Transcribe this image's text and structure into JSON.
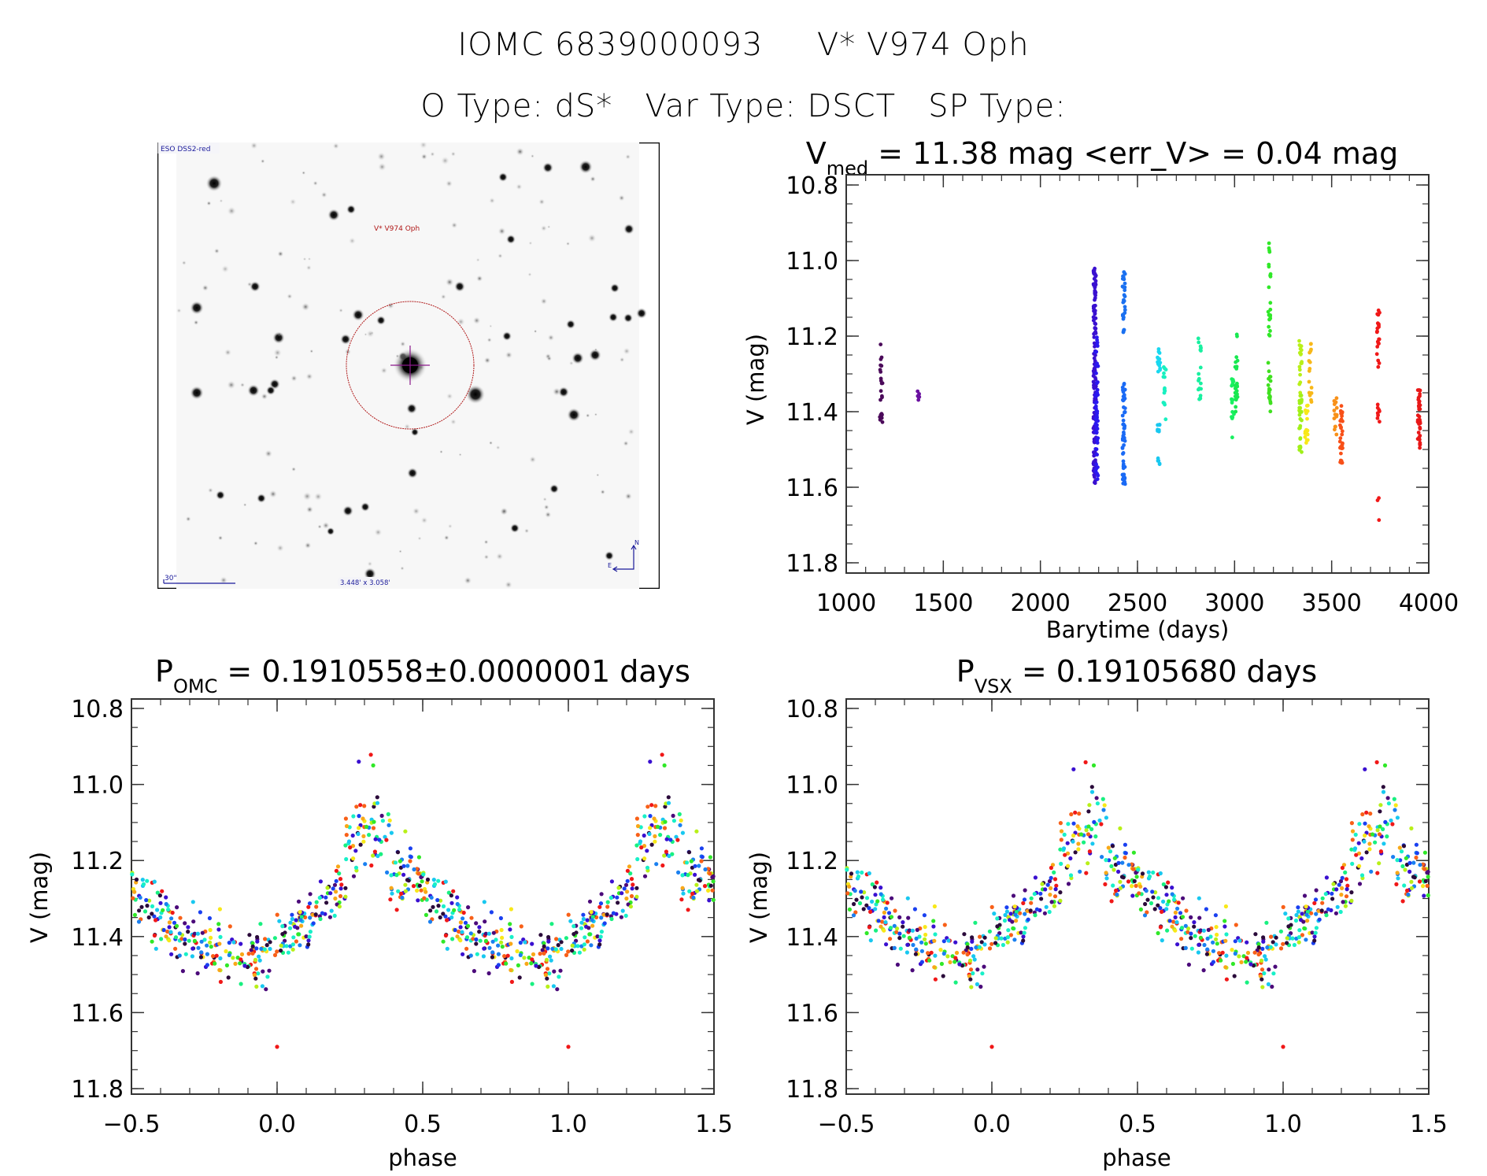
{
  "header": {
    "line1_id": "IOMC 6839000093",
    "line1_name": "V* V974 Oph",
    "line2_otype": "O Type: dS*",
    "line2_vartype": "Var Type: DSCT",
    "line2_sptype": "SP Type:"
  },
  "sky_image": {
    "survey_label": "ESO DSS2-red",
    "target_label": "V* V974 Oph",
    "scale_label": "30\"",
    "fov_label": "3.448' x 3.058'",
    "north_label": "N",
    "east_label": "E",
    "colors": {
      "overlay_blue": "#1a1a9a",
      "target_red": "#b01818",
      "cross": "#8a1a8a"
    }
  },
  "chart_data": [
    {
      "id": "lightcurve",
      "type": "scatter",
      "title_main": "V",
      "title_sub": "med",
      "title_rest": " = 11.38 mag <err_V> = 0.04 mag",
      "xlabel": "Barytime (days)",
      "ylabel": "V (mag)",
      "xlim": [
        1000,
        4000
      ],
      "ylim": [
        10.8,
        11.8
      ],
      "y_inverted": true,
      "xticks": [
        1000,
        1500,
        2000,
        2500,
        3000,
        3500,
        4000
      ],
      "xtick_labels": [
        "1000",
        "1500",
        "2000",
        "2500",
        "3000",
        "3500",
        "4000"
      ],
      "yticks": [
        10.8,
        11.0,
        11.2,
        11.4,
        11.6,
        11.8
      ],
      "ytick_labels": [
        "10.8",
        "11.0",
        "11.2",
        "11.4",
        "11.6",
        "11.8"
      ],
      "grid": false,
      "clusters": [
        {
          "t": 1180,
          "mag_min": 11.22,
          "mag_max": 11.43,
          "n": 22,
          "color": "#4b0a5a"
        },
        {
          "t": 1370,
          "mag_min": 11.34,
          "mag_max": 11.37,
          "n": 6,
          "color": "#6a10a0"
        },
        {
          "t": 2280,
          "mag_min": 11.02,
          "mag_max": 11.6,
          "n": 140,
          "color": "#3a10d0"
        },
        {
          "t": 2290,
          "mag_min": 11.2,
          "mag_max": 11.58,
          "n": 60,
          "color": "#2a18f0"
        },
        {
          "t": 2430,
          "mag_min": 11.03,
          "mag_max": 11.2,
          "n": 30,
          "color": "#1a70f0"
        },
        {
          "t": 2430,
          "mag_min": 11.32,
          "mag_max": 11.6,
          "n": 60,
          "color": "#1a6af5"
        },
        {
          "t": 2610,
          "mag_min": 11.22,
          "mag_max": 11.3,
          "n": 14,
          "color": "#18d8f0"
        },
        {
          "t": 2610,
          "mag_min": 11.43,
          "mag_max": 11.55,
          "n": 14,
          "color": "#18c8f0"
        },
        {
          "t": 2640,
          "mag_min": 11.28,
          "mag_max": 11.43,
          "n": 14,
          "color": "#18f0c0"
        },
        {
          "t": 2820,
          "mag_min": 11.18,
          "mag_max": 11.37,
          "n": 18,
          "color": "#18f0a0"
        },
        {
          "t": 2990,
          "mag_min": 11.3,
          "mag_max": 11.47,
          "n": 16,
          "color": "#18f060"
        },
        {
          "t": 3010,
          "mag_min": 11.17,
          "mag_max": 11.4,
          "n": 24,
          "color": "#18e850"
        },
        {
          "t": 3180,
          "mag_min": 10.95,
          "mag_max": 11.2,
          "n": 22,
          "color": "#30e828"
        },
        {
          "t": 3180,
          "mag_min": 11.27,
          "mag_max": 11.4,
          "n": 20,
          "color": "#40e020"
        },
        {
          "t": 3340,
          "mag_min": 11.19,
          "mag_max": 11.4,
          "n": 22,
          "color": "#b8f018"
        },
        {
          "t": 3340,
          "mag_min": 11.35,
          "mag_max": 11.51,
          "n": 26,
          "color": "#a0f018"
        },
        {
          "t": 3370,
          "mag_min": 11.36,
          "mag_max": 11.5,
          "n": 18,
          "color": "#f8e818"
        },
        {
          "t": 3390,
          "mag_min": 11.21,
          "mag_max": 11.38,
          "n": 16,
          "color": "#f8b818"
        },
        {
          "t": 3520,
          "mag_min": 11.36,
          "mag_max": 11.47,
          "n": 14,
          "color": "#f89018"
        },
        {
          "t": 3550,
          "mag_min": 11.38,
          "mag_max": 11.54,
          "n": 30,
          "color": "#f85018"
        },
        {
          "t": 3740,
          "mag_min": 11.13,
          "mag_max": 11.29,
          "n": 24,
          "color": "#f01818"
        },
        {
          "t": 3740,
          "mag_min": 11.38,
          "mag_max": 11.43,
          "n": 8,
          "color": "#f01818"
        },
        {
          "t": 3740,
          "mag_min": 11.54,
          "mag_max": 11.69,
          "n": 3,
          "color": "#f01818"
        },
        {
          "t": 3950,
          "mag_min": 11.34,
          "mag_max": 11.5,
          "n": 40,
          "color": "#e81818"
        }
      ]
    },
    {
      "id": "phase_omc",
      "type": "scatter",
      "title_main": "P",
      "title_sub": "OMC",
      "title_rest": " = 0.1910558±0.0000001 days",
      "xlabel": "phase",
      "ylabel": "V (mag)",
      "xlim": [
        -0.5,
        1.5
      ],
      "ylim": [
        10.8,
        11.8
      ],
      "y_inverted": true,
      "xticks": [
        -0.5,
        0.0,
        0.5,
        1.0,
        1.5
      ],
      "xtick_labels": [
        "−0.5",
        "0.0",
        "0.5",
        "1.0",
        "1.5"
      ],
      "yticks": [
        10.8,
        11.0,
        11.2,
        11.4,
        11.6,
        11.8
      ],
      "ytick_labels": [
        "10.8",
        "11.0",
        "11.2",
        "11.4",
        "11.6",
        "11.8"
      ],
      "grid": false,
      "mean_curve": {
        "phase": [
          0.0,
          0.05,
          0.1,
          0.15,
          0.2,
          0.25,
          0.3,
          0.33,
          0.36,
          0.4,
          0.45,
          0.5,
          0.55,
          0.6,
          0.65,
          0.7,
          0.75,
          0.8,
          0.85,
          0.9,
          0.95,
          1.0
        ],
        "mag": [
          11.43,
          11.4,
          11.36,
          11.32,
          11.28,
          11.18,
          11.1,
          11.07,
          11.14,
          11.22,
          11.24,
          11.27,
          11.31,
          11.34,
          11.38,
          11.4,
          11.42,
          11.44,
          11.45,
          11.46,
          11.45,
          11.43
        ]
      },
      "scatter_sigma_mag": 0.04,
      "n_points": 420,
      "outliers": [
        {
          "phase": 0.0,
          "mag": 11.69
        },
        {
          "phase": 0.33,
          "mag": 10.95
        }
      ]
    },
    {
      "id": "phase_vsx",
      "type": "scatter",
      "title_main": "P",
      "title_sub": "VSX",
      "title_rest": " = 0.19105680 days",
      "xlabel": "phase",
      "ylabel": "V (mag)",
      "xlim": [
        -0.5,
        1.5
      ],
      "ylim": [
        10.8,
        11.8
      ],
      "y_inverted": true,
      "xticks": [
        -0.5,
        0.0,
        0.5,
        1.0,
        1.5
      ],
      "xtick_labels": [
        "−0.5",
        "0.0",
        "0.5",
        "1.0",
        "1.5"
      ],
      "yticks": [
        10.8,
        11.0,
        11.2,
        11.4,
        11.6,
        11.8
      ],
      "ytick_labels": [
        "10.8",
        "11.0",
        "11.2",
        "11.4",
        "11.6",
        "11.8"
      ],
      "grid": false,
      "mean_curve": {
        "phase": [
          0.0,
          0.05,
          0.1,
          0.15,
          0.2,
          0.25,
          0.3,
          0.35,
          0.38,
          0.42,
          0.47,
          0.52,
          0.57,
          0.62,
          0.67,
          0.72,
          0.77,
          0.82,
          0.87,
          0.92,
          0.96,
          1.0
        ],
        "mag": [
          11.41,
          11.38,
          11.35,
          11.31,
          11.27,
          11.2,
          11.12,
          11.07,
          11.14,
          11.22,
          11.24,
          11.27,
          11.3,
          11.33,
          11.37,
          11.4,
          11.42,
          11.44,
          11.45,
          11.46,
          11.44,
          11.41
        ]
      },
      "scatter_sigma_mag": 0.04,
      "n_points": 420,
      "outliers": [
        {
          "phase": 0.0,
          "mag": 11.69
        },
        {
          "phase": 0.35,
          "mag": 10.95
        }
      ]
    }
  ],
  "palette": [
    "#2a0a3a",
    "#4b0a7a",
    "#3a10d0",
    "#1a40f0",
    "#1a80f0",
    "#18c8f0",
    "#18f0c8",
    "#18f080",
    "#30e828",
    "#b8f018",
    "#f8e818",
    "#f8a818",
    "#f86018",
    "#f01818"
  ]
}
